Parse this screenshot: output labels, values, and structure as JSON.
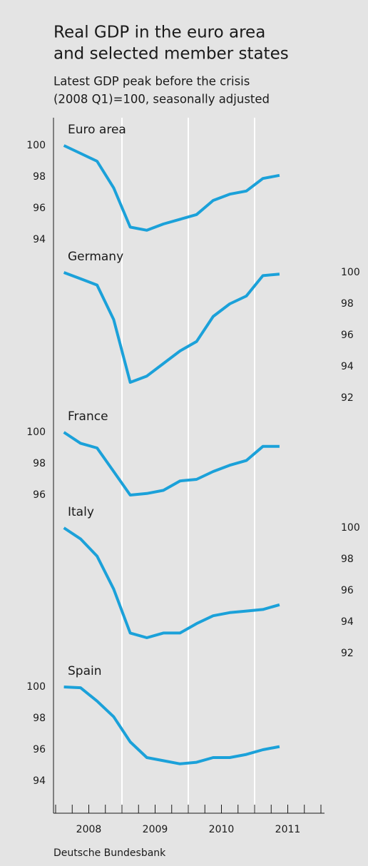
{
  "chart_data": {
    "type": "line",
    "title": [
      "Real GDP in the euro area",
      "and selected member states"
    ],
    "subtitle": [
      "Latest GDP peak before the crisis",
      "(2008 Q1)=100, seasonally adjusted"
    ],
    "source": "Deutsche Bundesbank",
    "x": [
      2008.125,
      2008.375,
      2008.625,
      2008.875,
      2009.125,
      2009.375,
      2009.625,
      2009.875,
      2010.125,
      2010.375,
      2010.625,
      2010.875,
      2011.125,
      2011.375
    ],
    "xlim": [
      2008,
      2012
    ],
    "xticks": [
      2008,
      2008.25,
      2008.5,
      2008.75,
      2009,
      2009.25,
      2009.5,
      2009.75,
      2010,
      2010.25,
      2010.5,
      2010.75,
      2011,
      2011.25,
      2011.5,
      2011.75,
      2012
    ],
    "xtick_labels": [
      {
        "value": 2008.5,
        "label": "2008"
      },
      {
        "value": 2009.5,
        "label": "2009"
      },
      {
        "value": 2010.5,
        "label": "2010"
      },
      {
        "value": 2011.5,
        "label": "2011"
      }
    ],
    "grid": true,
    "series": [
      {
        "name": "Euro area",
        "color": "#1ba1d9",
        "yaxis": "left",
        "ylim": [
          93,
          101.5
        ],
        "yticks": [
          94,
          96,
          98,
          100
        ],
        "values": [
          100,
          99.5,
          99.0,
          97.3,
          94.8,
          94.6,
          95.0,
          95.3,
          95.6,
          96.5,
          96.9,
          97.1,
          97.9,
          98.1
        ]
      },
      {
        "name": "Germany",
        "color": "#1ba1d9",
        "yaxis": "right",
        "ylim": [
          91,
          101.5
        ],
        "yticks": [
          92,
          94,
          96,
          98,
          100
        ],
        "values": [
          100,
          99.6,
          99.2,
          97.0,
          93.0,
          93.4,
          94.2,
          95.0,
          95.6,
          97.2,
          98.0,
          98.5,
          99.8,
          99.9
        ]
      },
      {
        "name": "France",
        "color": "#1ba1d9",
        "yaxis": "left",
        "ylim": [
          95,
          101.5
        ],
        "yticks": [
          96,
          98,
          100
        ],
        "values": [
          100,
          99.3,
          99.0,
          97.5,
          96.0,
          96.1,
          96.3,
          96.9,
          97.0,
          97.5,
          97.9,
          98.2,
          99.1,
          99.1
        ]
      },
      {
        "name": "Italy",
        "color": "#1ba1d9",
        "yaxis": "right",
        "ylim": [
          91,
          101.5
        ],
        "yticks": [
          92,
          94,
          96,
          98,
          100
        ],
        "values": [
          100,
          99.3,
          98.2,
          96.1,
          93.3,
          93.0,
          93.3,
          93.3,
          93.9,
          94.4,
          94.6,
          94.7,
          94.8,
          95.1
        ]
      },
      {
        "name": "Spain",
        "color": "#1ba1d9",
        "yaxis": "left",
        "ylim": [
          93,
          101.5
        ],
        "yticks": [
          94,
          96,
          98,
          100
        ],
        "values": [
          100,
          99.95,
          99.1,
          98.1,
          96.5,
          95.5,
          95.3,
          95.1,
          95.2,
          95.5,
          95.5,
          95.7,
          96.0,
          96.2
        ]
      }
    ]
  }
}
